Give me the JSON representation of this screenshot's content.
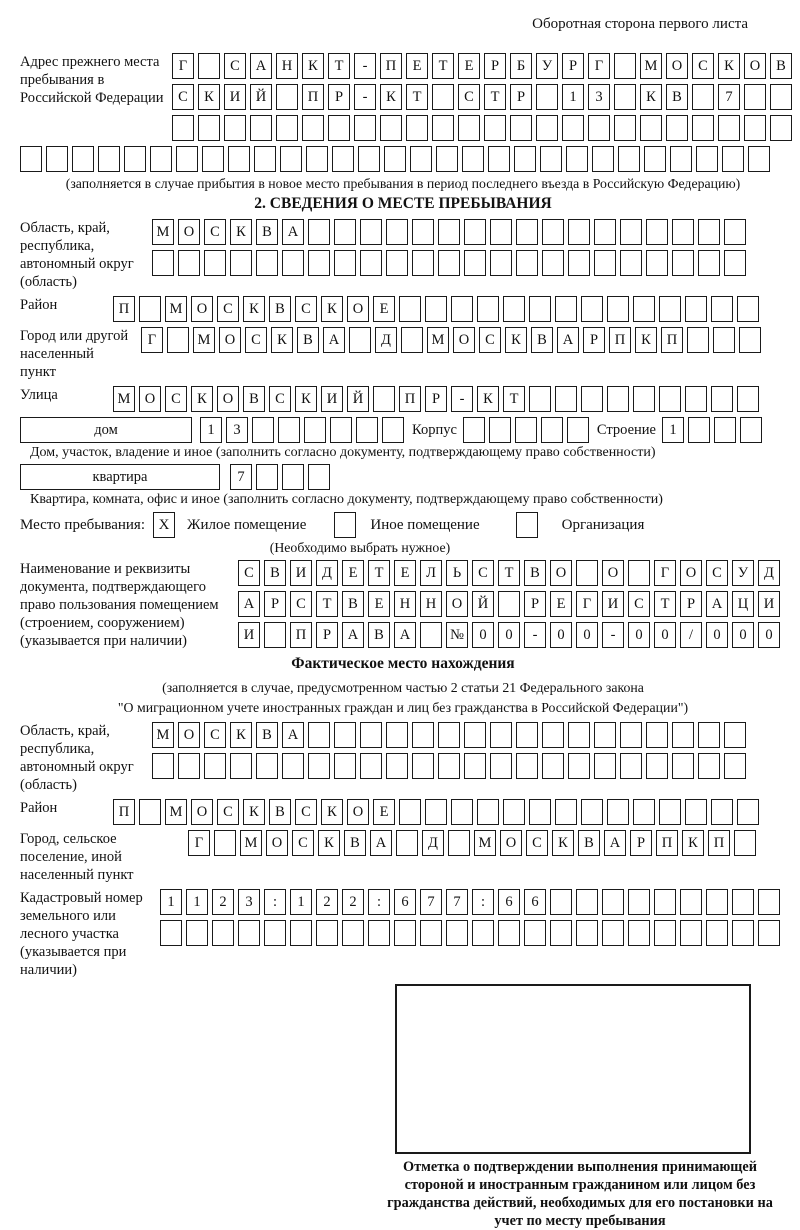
{
  "page": {
    "header_note": "Оборотная сторона первого листа"
  },
  "prev_address": {
    "label": "Адрес прежнего места пребывания в Российской Федерации",
    "row1": {
      "text": "Г САНКТ-ПЕТЕРБУРГ МОСКОВ",
      "count": 24
    },
    "row2": {
      "text": "СКИЙ ПР-КТ СТР 13 КВ 7",
      "count": 24
    },
    "row3": {
      "text": "",
      "count": 24
    },
    "row4": {
      "text": "",
      "count": 29
    },
    "note": "(заполняется в случае прибытия в новое место пребывания в период последнего въезда в Российскую Федерацию)"
  },
  "section2": {
    "title": "2. СВЕДЕНИЯ О МЕСТЕ ПРЕБЫВАНИЯ",
    "region": {
      "label": "Область, край, республика, автономный округ (область)",
      "row1": {
        "text": "МОСКВА",
        "count": 23
      },
      "row2": {
        "text": "",
        "count": 23
      }
    },
    "district": {
      "label": "Район",
      "row": {
        "text": "П МОСКВСКОЕ",
        "count": 25
      }
    },
    "city": {
      "label": "Город или другой населенный пункт",
      "row": {
        "text": "Г МОСКВА Д МОСКВАРПКП",
        "count": 24
      }
    },
    "street": {
      "label": "Улица",
      "row": {
        "text": "МОСКОВСКИЙ ПР-КТ",
        "count": 25
      }
    },
    "house": {
      "box_label": "дом",
      "cells": {
        "text": "13",
        "count": 8
      },
      "korpus_label": "Корпус",
      "korpus_cells": {
        "text": "",
        "count": 5
      },
      "stroenie_label": "Строение",
      "stroenie_cells": {
        "text": "1",
        "count": 4
      },
      "note": "Дом, участок, владение и иное (заполнить согласно документу, подтверждающему право собственности)"
    },
    "apartment": {
      "box_label": "квартира",
      "cells": {
        "text": "7",
        "count": 4
      },
      "note": "Квартира, комната, офис и иное (заполнить согласно документу, подтверждающему право собственности)"
    },
    "stay_type": {
      "label": "Место пребывания:",
      "options": [
        {
          "label": "Жилое помещение",
          "mark": "X"
        },
        {
          "label": "Иное помещение",
          "mark": ""
        },
        {
          "label": "Организация",
          "mark": ""
        }
      ],
      "note": "(Необходимо выбрать нужное)"
    },
    "document": {
      "label": "Наименование и реквизиты документа, подтверждающего право пользования помещением (строением, сооружением) (указывается при наличии)",
      "row1": {
        "text": "СВИДЕТЕЛЬСТВО О ГОСУД",
        "count": 21
      },
      "row2": {
        "text": "АРСТВЕННОЙ РЕГИСТРАЦИ",
        "count": 21
      },
      "row3": {
        "text": "И ПРАВА №00-00-00/000",
        "count": 21
      }
    }
  },
  "actual_location": {
    "title": "Фактическое место нахождения",
    "note_line1": "(заполняется в случае, предусмотренном частью 2 статьи 21 Федерального закона",
    "note_line2": "\"О миграционном учете иностранных граждан и лиц без гражданства в Российской Федерации\")",
    "region": {
      "label": "Область, край, республика, автономный округ (область)",
      "row1": {
        "text": "МОСКВА",
        "count": 23
      },
      "row2": {
        "text": "",
        "count": 23
      }
    },
    "district": {
      "label": "Район",
      "row": {
        "text": "П МОСКВСКОЕ",
        "count": 25
      }
    },
    "city": {
      "label": "Город, сельское поселение, иной населенный пункт",
      "row": {
        "text": "Г МОСКВА Д МОСКВАРПКП",
        "count": 22
      }
    },
    "cadastral": {
      "label": "Кадастровый номер земельного или лесного участка (указывается при наличии)",
      "row1": {
        "text": "1123:122:677:66",
        "count": 24
      },
      "row2": {
        "text": "",
        "count": 24
      }
    },
    "stamp_caption": "Отметка о подтверждении выполнения принимающей стороной и иностранным гражданином или лицом без гражданства действий, необходимых для его постановки на учет по месту пребывания"
  }
}
